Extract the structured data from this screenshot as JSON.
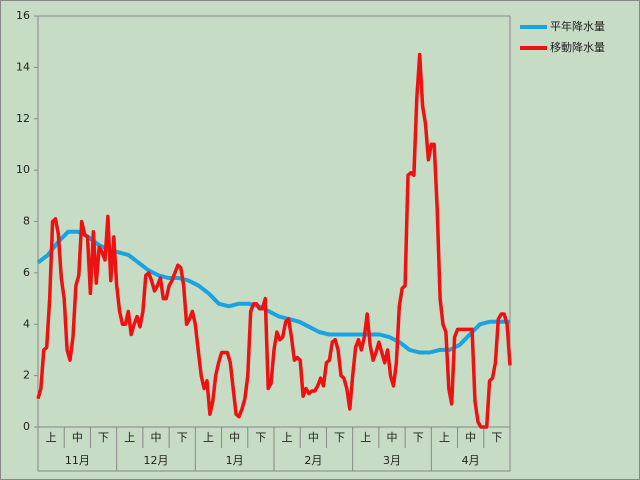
{
  "chart_data": {
    "type": "line",
    "dekads": [
      "上",
      "中",
      "下",
      "上",
      "中",
      "下",
      "上",
      "中",
      "下",
      "上",
      "中",
      "下",
      "上",
      "中",
      "下",
      "上",
      "中",
      "下"
    ],
    "months": [
      "11月",
      "12月",
      "1月",
      "2月",
      "3月",
      "4月"
    ],
    "ylim": [
      0,
      16
    ],
    "yticks": [
      0,
      2,
      4,
      6,
      8,
      10,
      12,
      14,
      16
    ],
    "legend": "right",
    "series": [
      {
        "name": "平年降水量",
        "color": "#1aa3e0",
        "values": [
          6.4,
          6.7,
          7.2,
          7.6,
          7.6,
          7.4,
          7.1,
          6.9,
          6.8,
          6.7,
          6.4,
          6.1,
          5.9,
          5.8,
          5.8,
          5.7,
          5.5,
          5.2,
          4.8,
          4.7,
          4.8,
          4.8,
          4.7,
          4.5,
          4.3,
          4.2,
          4.1,
          3.9,
          3.7,
          3.6,
          3.6,
          3.6,
          3.6,
          3.6,
          3.6,
          3.5,
          3.3,
          3.0,
          2.9,
          2.9,
          3.0,
          3.0,
          3.2,
          3.6,
          4.0,
          4.1,
          4.1,
          4.1
        ]
      },
      {
        "name": "移動降水量",
        "color": "#ee1111",
        "values": [
          1.1,
          1.5,
          3.0,
          3.1,
          5.0,
          8.0,
          8.1,
          7.5,
          5.8,
          5.0,
          3.0,
          2.6,
          3.5,
          5.5,
          5.9,
          8.0,
          7.5,
          7.4,
          5.2,
          7.6,
          5.6,
          7.0,
          6.8,
          6.5,
          8.2,
          5.7,
          7.4,
          5.5,
          4.5,
          4.0,
          4.0,
          4.5,
          3.6,
          4.0,
          4.3,
          3.9,
          4.5,
          5.9,
          6.0,
          5.7,
          5.3,
          5.5,
          5.8,
          5.0,
          5.0,
          5.5,
          5.7,
          6.0,
          6.3,
          6.2,
          5.5,
          4.0,
          4.2,
          4.5,
          4.0,
          3.0,
          2.0,
          1.5,
          1.8,
          0.5,
          1.0,
          2.0,
          2.5,
          2.9,
          2.9,
          2.9,
          2.5,
          1.5,
          0.5,
          0.4,
          0.7,
          1.1,
          2.0,
          4.5,
          4.8,
          4.8,
          4.6,
          4.6,
          5.0,
          1.5,
          1.7,
          3.0,
          3.7,
          3.4,
          3.5,
          4.1,
          4.2,
          3.5,
          2.6,
          2.7,
          2.6,
          1.2,
          1.5,
          1.3,
          1.4,
          1.4,
          1.6,
          1.9,
          1.6,
          2.5,
          2.6,
          3.3,
          3.4,
          3.0,
          2.0,
          1.9,
          1.5,
          0.7,
          2.0,
          3.1,
          3.4,
          3.0,
          3.5,
          4.4,
          3.2,
          2.6,
          2.9,
          3.3,
          2.9,
          2.5,
          3.0,
          2.0,
          1.6,
          2.5,
          4.7,
          5.4,
          5.5,
          9.8,
          9.9,
          9.8,
          12.8,
          14.5,
          12.5,
          11.8,
          10.4,
          11.0,
          11.0,
          8.5,
          5.0,
          4.0,
          3.7,
          1.5,
          0.9,
          3.5,
          3.8,
          3.8,
          3.8,
          3.8,
          3.8,
          3.8,
          1.0,
          0.2,
          0.0,
          0.0,
          0.0,
          1.8,
          1.9,
          2.5,
          4.2,
          4.4,
          4.4,
          4.0,
          2.4
        ]
      }
    ]
  }
}
